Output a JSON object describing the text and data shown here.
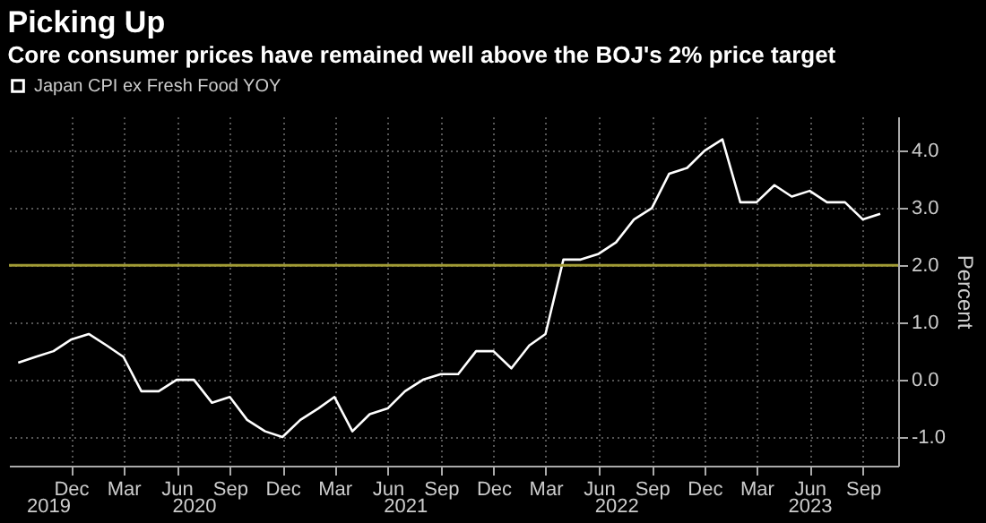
{
  "chart_data": {
    "type": "line",
    "title": "Picking Up",
    "subtitle": "Core consumer prices have remained well above the BOJ's 2% price target",
    "ylabel": "Percent",
    "x": [
      "2019-09",
      "2019-10",
      "2019-11",
      "2019-12",
      "2020-01",
      "2020-02",
      "2020-03",
      "2020-04",
      "2020-05",
      "2020-06",
      "2020-07",
      "2020-08",
      "2020-09",
      "2020-10",
      "2020-11",
      "2020-12",
      "2021-01",
      "2021-02",
      "2021-03",
      "2021-04",
      "2021-05",
      "2021-06",
      "2021-07",
      "2021-08",
      "2021-09",
      "2021-10",
      "2021-11",
      "2021-12",
      "2022-01",
      "2022-02",
      "2022-03",
      "2022-04",
      "2022-05",
      "2022-06",
      "2022-07",
      "2022-08",
      "2022-09",
      "2022-10",
      "2022-11",
      "2022-12",
      "2023-01",
      "2023-02",
      "2023-03",
      "2023-04",
      "2023-05",
      "2023-06",
      "2023-07",
      "2023-08",
      "2023-09",
      "2023-10"
    ],
    "series": [
      {
        "name": "Japan CPI ex Fresh Food YOY",
        "color": "#ffffff",
        "values": [
          0.3,
          0.4,
          0.5,
          0.7,
          0.8,
          0.6,
          0.4,
          -0.2,
          -0.2,
          0.0,
          0.0,
          -0.4,
          -0.3,
          -0.7,
          -0.9,
          -1.0,
          -0.7,
          -0.5,
          -0.3,
          -0.9,
          -0.6,
          -0.5,
          -0.2,
          0.0,
          0.1,
          0.1,
          0.5,
          0.5,
          0.2,
          0.6,
          0.8,
          2.1,
          2.1,
          2.2,
          2.4,
          2.8,
          3.0,
          3.6,
          3.7,
          4.0,
          4.2,
          3.1,
          3.1,
          3.4,
          3.2,
          3.3,
          3.1,
          3.1,
          2.8,
          2.9
        ]
      }
    ],
    "xlim": [
      "2019-08-16",
      "2023-11-01"
    ],
    "xticks": [
      {
        "value": "2019-12",
        "label": "Dec"
      },
      {
        "value": "2020-03",
        "label": "Mar"
      },
      {
        "value": "2020-06",
        "label": "Jun"
      },
      {
        "value": "2020-09",
        "label": "Sep"
      },
      {
        "value": "2020-12",
        "label": "Dec"
      },
      {
        "value": "2021-03",
        "label": "Mar"
      },
      {
        "value": "2021-06",
        "label": "Jun"
      },
      {
        "value": "2021-09",
        "label": "Sep"
      },
      {
        "value": "2021-12",
        "label": "Dec"
      },
      {
        "value": "2022-03",
        "label": "Mar"
      },
      {
        "value": "2022-06",
        "label": "Jun"
      },
      {
        "value": "2022-09",
        "label": "Sep"
      },
      {
        "value": "2022-12",
        "label": "Dec"
      },
      {
        "value": "2023-03",
        "label": "Mar"
      },
      {
        "value": "2023-06",
        "label": "Jun"
      },
      {
        "value": "2023-09",
        "label": "Sep"
      }
    ],
    "annotations": [
      "2019",
      "2020",
      "2021",
      "2022",
      "2023"
    ],
    "ylim": [
      -1.5,
      4.6
    ],
    "yticks": [
      {
        "value": -1,
        "label": "-1.0"
      },
      {
        "value": 0,
        "label": "0.0"
      },
      {
        "value": 1,
        "label": "1.0"
      },
      {
        "value": 2,
        "label": "2.0"
      },
      {
        "value": 3,
        "label": "3.0"
      },
      {
        "value": 4,
        "label": "4.0"
      }
    ],
    "ref_lines": [
      {
        "axis": "y",
        "value": 2,
        "color": "#a09a34"
      }
    ],
    "grid": true,
    "legend": "top left",
    "line_style": "solid"
  }
}
